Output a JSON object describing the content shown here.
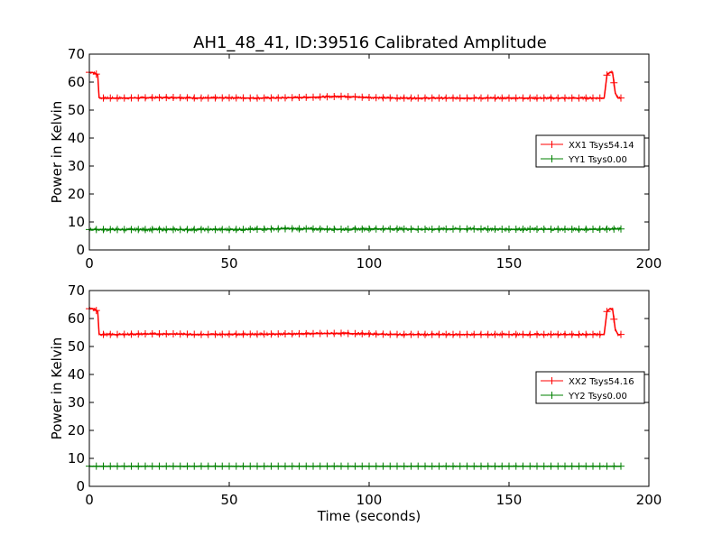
{
  "figure": {
    "title": "AH1_48_41, ID:39516 Calibrated Amplitude"
  },
  "chart_data": [
    {
      "type": "line",
      "xlabel": "",
      "ylabel": "Power in Kelvin",
      "xlim": [
        0,
        200
      ],
      "ylim": [
        0,
        70
      ],
      "xticks": [
        0,
        50,
        100,
        150,
        200
      ],
      "yticks": [
        0,
        10,
        20,
        30,
        40,
        50,
        60,
        70
      ],
      "legend_position": "center-right",
      "series": [
        {
          "name": "XX1 Tsys54.14",
          "color": "#ff0000",
          "marker": "plus",
          "x": [
            0,
            1,
            2,
            3,
            3.5,
            4,
            10,
            20,
            30,
            40,
            50,
            60,
            70,
            80,
            90,
            100,
            110,
            120,
            130,
            140,
            150,
            160,
            170,
            180,
            184,
            185,
            186,
            187,
            188,
            189,
            190
          ],
          "y": [
            63.5,
            63.5,
            63.2,
            62.5,
            54.5,
            54.3,
            54.3,
            54.4,
            54.5,
            54.3,
            54.4,
            54.3,
            54.4,
            54.6,
            54.9,
            54.5,
            54.3,
            54.3,
            54.3,
            54.3,
            54.3,
            54.3,
            54.3,
            54.3,
            54.3,
            62.5,
            63.5,
            63.5,
            56.0,
            54.3,
            54.3
          ]
        },
        {
          "name": "YY1 Tsys0.00",
          "color": "#008000",
          "marker": "plus",
          "x": [
            0,
            10,
            20,
            30,
            40,
            50,
            60,
            70,
            80,
            90,
            100,
            110,
            120,
            130,
            140,
            150,
            160,
            170,
            180,
            190
          ],
          "y": [
            7.3,
            7.3,
            7.3,
            7.3,
            7.3,
            7.3,
            7.4,
            7.6,
            7.5,
            7.4,
            7.5,
            7.5,
            7.4,
            7.5,
            7.5,
            7.4,
            7.4,
            7.4,
            7.4,
            7.5
          ]
        }
      ]
    },
    {
      "type": "line",
      "xlabel": "Time (seconds)",
      "ylabel": "Power in Kelvin",
      "xlim": [
        0,
        200
      ],
      "ylim": [
        0,
        70
      ],
      "xticks": [
        0,
        50,
        100,
        150,
        200
      ],
      "yticks": [
        0,
        10,
        20,
        30,
        40,
        50,
        60,
        70
      ],
      "legend_position": "center-right",
      "series": [
        {
          "name": "XX2 Tsys54.16",
          "color": "#ff0000",
          "marker": "plus",
          "x": [
            0,
            1,
            2,
            3,
            3.5,
            4,
            10,
            20,
            30,
            40,
            50,
            60,
            70,
            80,
            90,
            100,
            110,
            120,
            130,
            140,
            150,
            160,
            170,
            180,
            184,
            185,
            186,
            187,
            188,
            189,
            190
          ],
          "y": [
            63.5,
            63.5,
            63.2,
            62.5,
            54.5,
            54.3,
            54.3,
            54.5,
            54.5,
            54.3,
            54.4,
            54.4,
            54.5,
            54.6,
            54.7,
            54.5,
            54.3,
            54.3,
            54.3,
            54.3,
            54.3,
            54.3,
            54.3,
            54.3,
            54.3,
            62.5,
            63.5,
            63.5,
            56.0,
            54.3,
            54.3
          ]
        },
        {
          "name": "YY2 Tsys0.00",
          "color": "#008000",
          "marker": "plus",
          "x": [
            0,
            10,
            20,
            30,
            40,
            50,
            60,
            70,
            80,
            90,
            100,
            110,
            120,
            130,
            140,
            150,
            160,
            170,
            180,
            190
          ],
          "y": [
            7.2,
            7.2,
            7.2,
            7.2,
            7.2,
            7.2,
            7.2,
            7.2,
            7.2,
            7.2,
            7.2,
            7.2,
            7.2,
            7.2,
            7.2,
            7.2,
            7.2,
            7.2,
            7.2,
            7.2
          ]
        }
      ]
    }
  ]
}
